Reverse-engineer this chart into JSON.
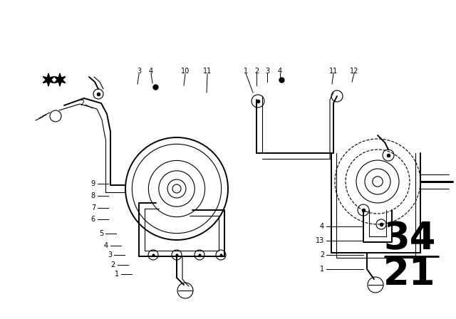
{
  "bg_color": "#ffffff",
  "fg_color": "#000000",
  "fig_width": 6.4,
  "fig_height": 4.48,
  "dpi": 100,
  "part_number_top": "34",
  "part_number_bottom": "21"
}
